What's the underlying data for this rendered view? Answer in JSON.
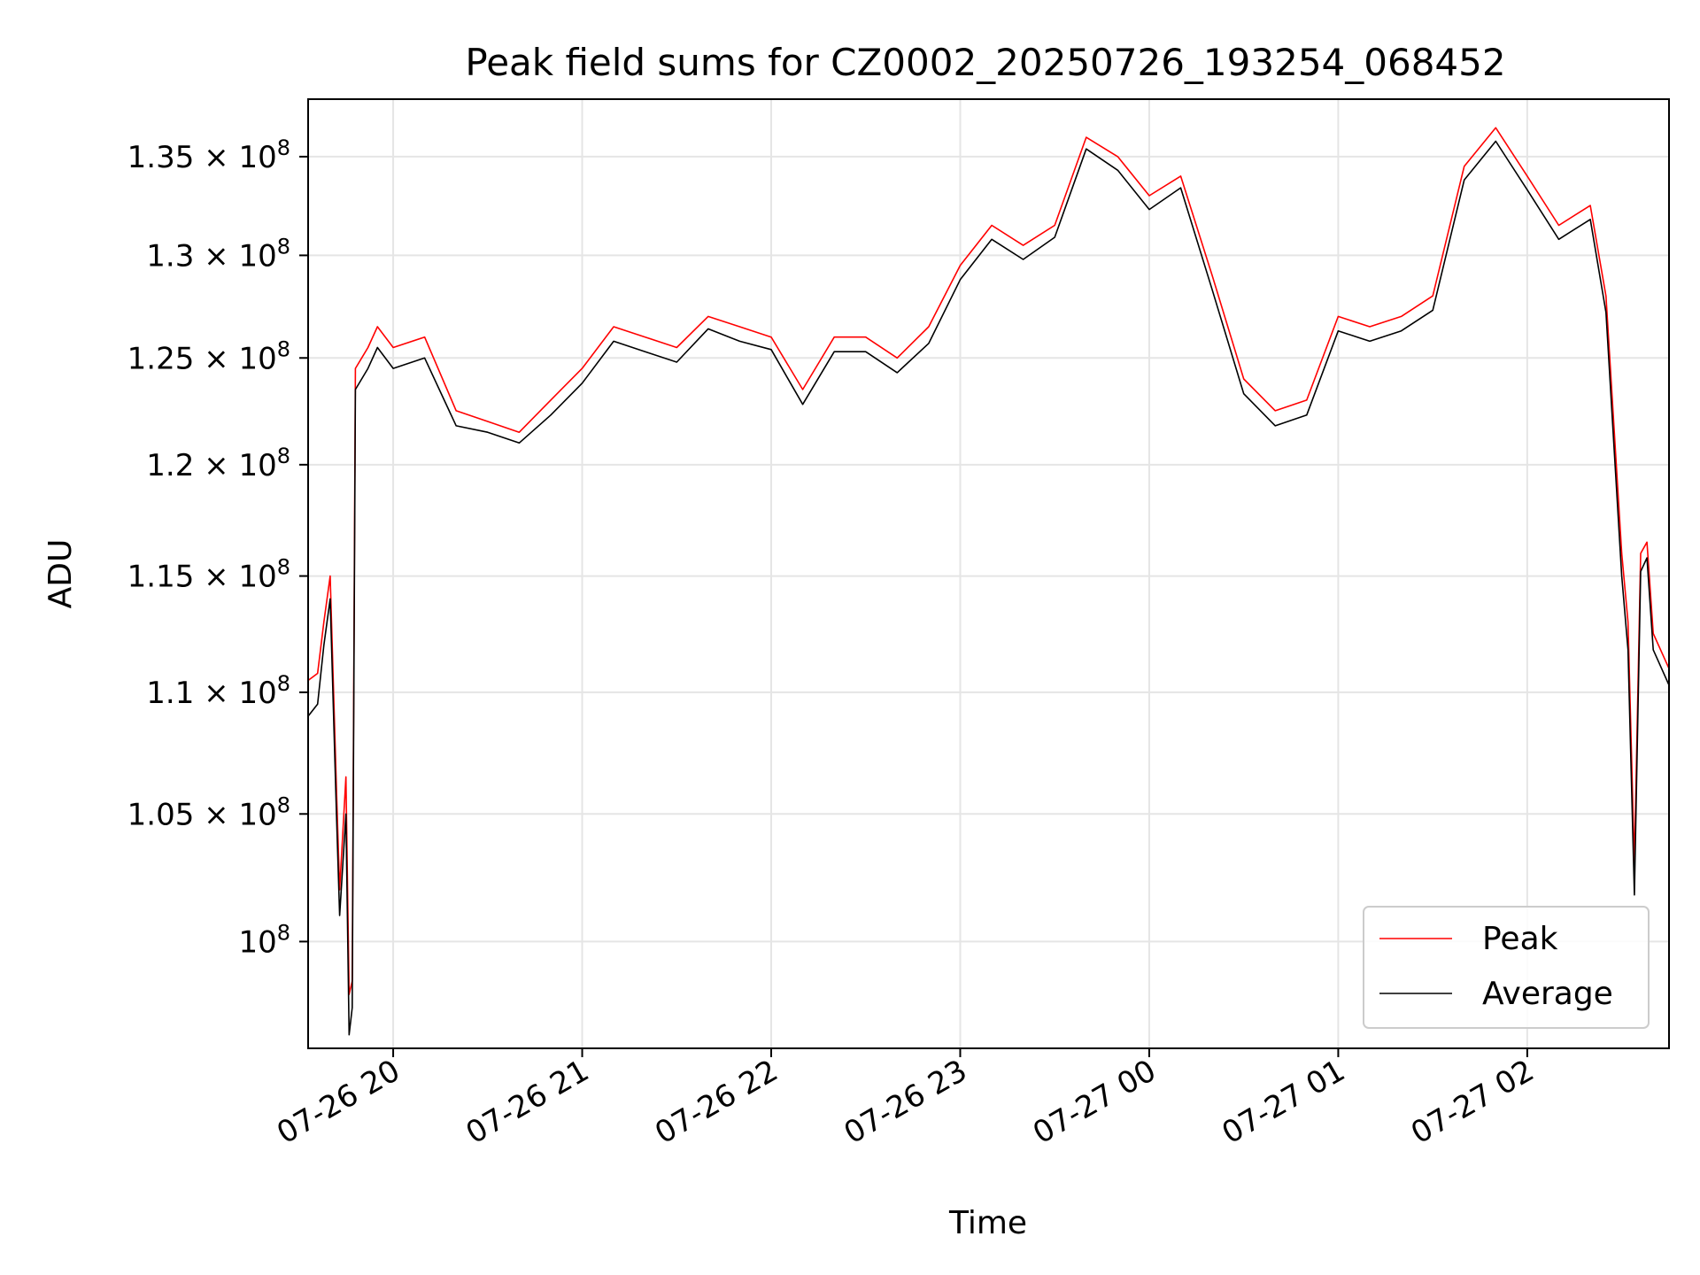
{
  "chart_data": {
    "type": "line",
    "title": "Peak field sums for CZ0002_20250726_193254_068452",
    "xlabel": "Time",
    "ylabel": "ADU",
    "y_scale": "log",
    "x_range": [
      "2025-07-26 19:33",
      "2025-07-27 02:45"
    ],
    "ylim": [
      96000000,
      138000000
    ],
    "grid": true,
    "legend_position": "lower right",
    "x_ticks": [
      "07-26 20",
      "07-26 21",
      "07-26 22",
      "07-26 23",
      "07-27 00",
      "07-27 01",
      "07-27 02"
    ],
    "y_ticks": [
      {
        "value": 100000000,
        "mantissa": "",
        "exp": "8"
      },
      {
        "value": 105000000,
        "mantissa": "1.05",
        "exp": "8"
      },
      {
        "value": 110000000,
        "mantissa": "1.1",
        "exp": "8"
      },
      {
        "value": 115000000,
        "mantissa": "1.15",
        "exp": "8"
      },
      {
        "value": 120000000,
        "mantissa": "1.2",
        "exp": "8"
      },
      {
        "value": 125000000,
        "mantissa": "1.25",
        "exp": "8"
      },
      {
        "value": 130000000,
        "mantissa": "1.3",
        "exp": "8"
      },
      {
        "value": 135000000,
        "mantissa": "1.35",
        "exp": "8"
      }
    ],
    "x": [
      "19:33",
      "19:36",
      "19:38",
      "19:40",
      "19:42",
      "19:43",
      "19:45",
      "19:46",
      "19:47",
      "19:48",
      "19:50",
      "19:52",
      "19:55",
      "20:00",
      "20:10",
      "20:20",
      "20:30",
      "20:40",
      "20:50",
      "21:00",
      "21:10",
      "21:20",
      "21:30",
      "21:40",
      "21:50",
      "22:00",
      "22:10",
      "22:20",
      "22:30",
      "22:40",
      "22:50",
      "23:00",
      "23:10",
      "23:20",
      "23:30",
      "23:40",
      "23:50",
      "00:00",
      "00:10",
      "00:20",
      "00:30",
      "00:40",
      "00:50",
      "01:00",
      "01:10",
      "01:20",
      "01:30",
      "01:40",
      "01:50",
      "02:00",
      "02:10",
      "02:20",
      "02:25",
      "02:30",
      "02:32",
      "02:34",
      "02:36",
      "02:38",
      "02:40",
      "02:45"
    ],
    "series": [
      {
        "name": "Peak",
        "color": "#ff0000",
        "values": [
          110500000,
          110800000,
          113000000,
          115000000,
          106000000,
          102000000,
          106500000,
          98000000,
          98500000,
          124500000,
          125000000,
          125500000,
          126500000,
          125500000,
          126000000,
          122500000,
          122000000,
          121500000,
          123000000,
          124500000,
          126500000,
          126000000,
          125500000,
          127000000,
          126500000,
          126000000,
          123500000,
          126000000,
          126000000,
          125000000,
          126500000,
          129500000,
          131500000,
          130500000,
          131500000,
          136000000,
          135000000,
          133000000,
          134000000,
          129000000,
          124000000,
          122500000,
          123000000,
          127000000,
          126500000,
          127000000,
          128000000,
          134500000,
          136500000,
          134000000,
          131500000,
          132500000,
          128000000,
          116000000,
          113000000,
          103000000,
          116000000,
          116500000,
          112500000,
          111000000
        ]
      },
      {
        "name": "Average",
        "color": "#000000",
        "values": [
          109000000,
          109500000,
          112000000,
          114000000,
          105000000,
          101000000,
          105000000,
          96500000,
          97500000,
          123500000,
          124000000,
          124500000,
          125500000,
          124500000,
          125000000,
          121800000,
          121500000,
          121000000,
          122300000,
          123800000,
          125800000,
          125300000,
          124800000,
          126400000,
          125800000,
          125400000,
          122800000,
          125300000,
          125300000,
          124300000,
          125700000,
          128800000,
          130800000,
          129800000,
          130900000,
          135400000,
          134300000,
          132300000,
          133400000,
          128300000,
          123300000,
          121800000,
          122300000,
          126300000,
          125800000,
          126300000,
          127300000,
          133800000,
          135800000,
          133300000,
          130800000,
          131800000,
          127200000,
          115000000,
          111800000,
          101800000,
          115200000,
          115800000,
          111800000,
          110300000
        ]
      }
    ]
  }
}
